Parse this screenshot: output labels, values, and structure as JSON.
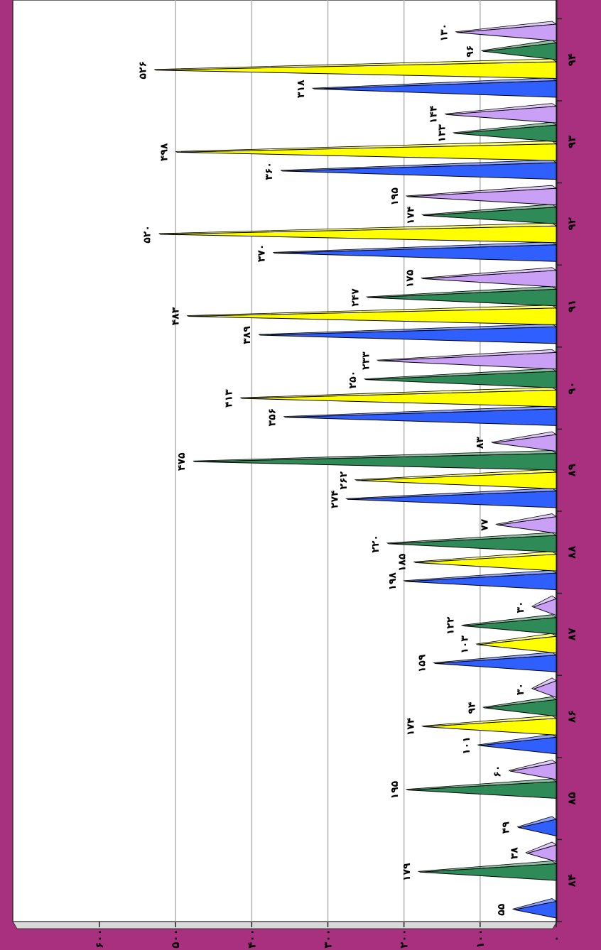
{
  "chart_data": {
    "type": "bar",
    "orientation": "horizontal-rotated",
    "title": "",
    "xlabel": "",
    "ylabel": "",
    "ylim": [
      0,
      600
    ],
    "grid": true,
    "categories": [
      "۸۴",
      "۸۵",
      "۸۶",
      "۸۷",
      "۸۸",
      "۸۹",
      "۹۰",
      "۹۱",
      "۹۲",
      "۹۳",
      "۹۴"
    ],
    "y_ticks": [
      {
        "value": 0,
        "label": "۰"
      },
      {
        "value": 100,
        "label": "۱۰۰"
      },
      {
        "value": 200,
        "label": "۲۰۰"
      },
      {
        "value": 300,
        "label": "۳۰۰"
      },
      {
        "value": 400,
        "label": "۴۰۰"
      },
      {
        "value": 500,
        "label": "۵۰۰"
      },
      {
        "value": 600,
        "label": "۶۰۰"
      }
    ],
    "series": [
      {
        "color": "#2f5fff",
        "values": [
          55,
          49,
          101,
          159,
          198,
          274,
          356,
          389,
          370,
          360,
          318
        ],
        "labels": [
          "۵۵",
          "۴۹",
          "۱۰۱",
          "۱۵۹",
          "۱۹۸",
          "۲۷۴",
          "۳۵۶",
          "۳۸۹",
          "۳۷۰",
          "۳۶۰",
          "۳۱۸"
        ]
      },
      {
        "color": "#ffff00",
        "values": [
          null,
          null,
          174,
          103,
          185,
          262,
          413,
          483,
          520,
          498,
          526
        ],
        "labels": [
          "",
          "",
          "۱۷۴",
          "۱۰۳",
          "۱۸۵",
          "۲۶۲",
          "۴۱۳",
          "۴۸۳",
          "۵۲۰",
          "۴۹۸",
          "۵۲۶"
        ]
      },
      {
        "color": "#2e8b57",
        "values": [
          179,
          195,
          94,
          122,
          220,
          475,
          250,
          247,
          174,
          133,
          96
        ],
        "labels": [
          "۱۷۹",
          "۱۹۵",
          "۹۴",
          "۱۲۲",
          "۲۲۰",
          "۴۷۵",
          "۲۵۰",
          "۲۴۷",
          "۱۷۴",
          "۱۳۳",
          "۹۶"
        ]
      },
      {
        "color": "#c9a0f5",
        "values": [
          38,
          60,
          30,
          30,
          77,
          83,
          233,
          175,
          195,
          144,
          130
        ],
        "labels": [
          "۳۸",
          "۶۰",
          "۳۰",
          "۳۰",
          "۷۷",
          "۸۳",
          "۲۳۳",
          "۱۷۵",
          "۱۹۵",
          "۱۴۴",
          "۱۳۰"
        ]
      }
    ]
  }
}
